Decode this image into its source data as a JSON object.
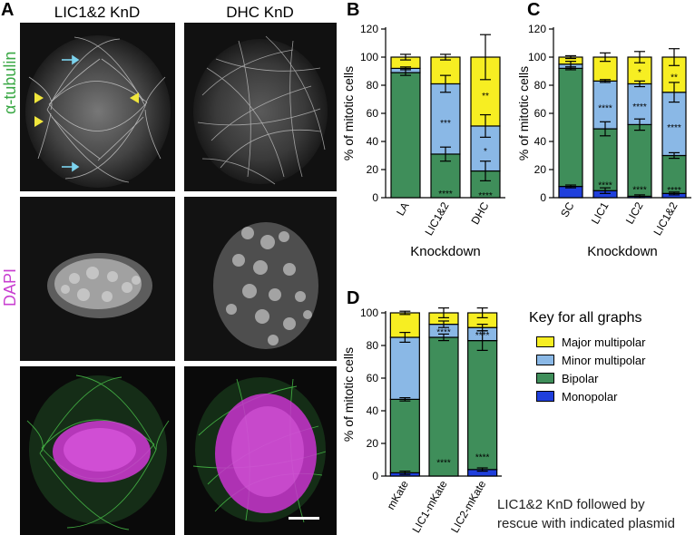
{
  "panelA": {
    "letter": "A",
    "col1": "LIC1&2 KnD",
    "col2": "DHC KnD",
    "row_tubulin": "α-tubulin",
    "row_dapi": "DAPI"
  },
  "key": {
    "title": "Key for all graphs",
    "items": [
      {
        "label": "Major multipolar",
        "color": "#f7ee22"
      },
      {
        "label": "Minor multipolar",
        "color": "#8ab8e6"
      },
      {
        "label": "Bipolar",
        "color": "#3f8e5a"
      },
      {
        "label": "Monopolar",
        "color": "#1f3fdc"
      }
    ]
  },
  "caption": {
    "line1": "LIC1&2 KnD followed by",
    "line2": "rescue with indicated plasmid"
  },
  "colors": {
    "major": "#f7ee22",
    "minor": "#8ab8e6",
    "bipolar": "#3f8e5a",
    "monopolar": "#1f3fdc",
    "tubulin_label": "#3aa845",
    "dapi_label": "#c83ed0",
    "arrow": "#7cd3ee",
    "arrowhead": "#f0e63c"
  },
  "chart_data": [
    {
      "panel": "B",
      "type": "bar",
      "stacked": true,
      "categories": [
        "LA",
        "LIC1&2",
        "DHC"
      ],
      "ylabel": "% of mitotic cells",
      "xlabel": "Knockdown",
      "ylim": [
        0,
        120
      ],
      "yticks": [
        0,
        20,
        40,
        60,
        80,
        100,
        120
      ],
      "series": [
        {
          "name": "Monopolar",
          "values": [
            0,
            0,
            0
          ]
        },
        {
          "name": "Bipolar",
          "values": [
            89,
            31,
            19
          ]
        },
        {
          "name": "Minor multipolar",
          "values": [
            3,
            50,
            32
          ]
        },
        {
          "name": "Major multipolar",
          "values": [
            8,
            19,
            49
          ]
        }
      ],
      "error_bars": [
        [
          1,
          2,
          1,
          2
        ],
        [
          1,
          5,
          6,
          2
        ],
        [
          1,
          7,
          8,
          16
        ]
      ],
      "stars": [
        [],
        [
          "****",
          "***",
          ""
        ],
        [
          "****",
          "*",
          "**"
        ]
      ]
    },
    {
      "panel": "C",
      "type": "bar",
      "stacked": true,
      "categories": [
        "SC",
        "LIC1",
        "LIC2",
        "LIC1&2"
      ],
      "ylabel": "% of mitotic cells",
      "xlabel": "Knockdown",
      "ylim": [
        0,
        120
      ],
      "yticks": [
        0,
        20,
        40,
        60,
        80,
        100,
        120
      ],
      "series": [
        {
          "name": "Monopolar",
          "values": [
            8,
            5,
            1,
            3
          ]
        },
        {
          "name": "Bipolar",
          "values": [
            84,
            44,
            51,
            27
          ]
        },
        {
          "name": "Minor multipolar",
          "values": [
            3,
            34,
            29,
            45
          ]
        },
        {
          "name": "Major multipolar",
          "values": [
            5,
            17,
            19,
            25
          ]
        }
      ],
      "error_bars": [
        [
          1,
          1,
          2,
          1
        ],
        [
          2,
          5,
          1,
          3
        ],
        [
          1,
          4,
          2,
          4
        ],
        [
          1,
          2,
          7,
          6
        ]
      ],
      "stars": [
        [],
        [
          "****",
          "****",
          ""
        ],
        [
          "****",
          "****",
          "*"
        ],
        [
          "****",
          "****",
          "**"
        ]
      ]
    },
    {
      "panel": "D",
      "type": "bar",
      "stacked": true,
      "categories": [
        "mKate",
        "LIC1-mKate",
        "LIC2-mKate"
      ],
      "ylabel": "% of mitotic cells",
      "xlabel": "",
      "ylim": [
        0,
        100
      ],
      "yticks": [
        0,
        20,
        40,
        60,
        80,
        100
      ],
      "series": [
        {
          "name": "Monopolar",
          "values": [
            2,
            0,
            4
          ]
        },
        {
          "name": "Bipolar",
          "values": [
            45,
            85,
            79
          ]
        },
        {
          "name": "Minor multipolar",
          "values": [
            38,
            8,
            8
          ]
        },
        {
          "name": "Major multipolar",
          "values": [
            15,
            7,
            9
          ]
        }
      ],
      "error_bars": [
        [
          1,
          1,
          3,
          1
        ],
        [
          0,
          2,
          2,
          3
        ],
        [
          1,
          6,
          2,
          3
        ]
      ],
      "stars": [
        [],
        [
          "****",
          "****",
          ""
        ],
        [
          "****",
          "****",
          ""
        ]
      ]
    }
  ]
}
